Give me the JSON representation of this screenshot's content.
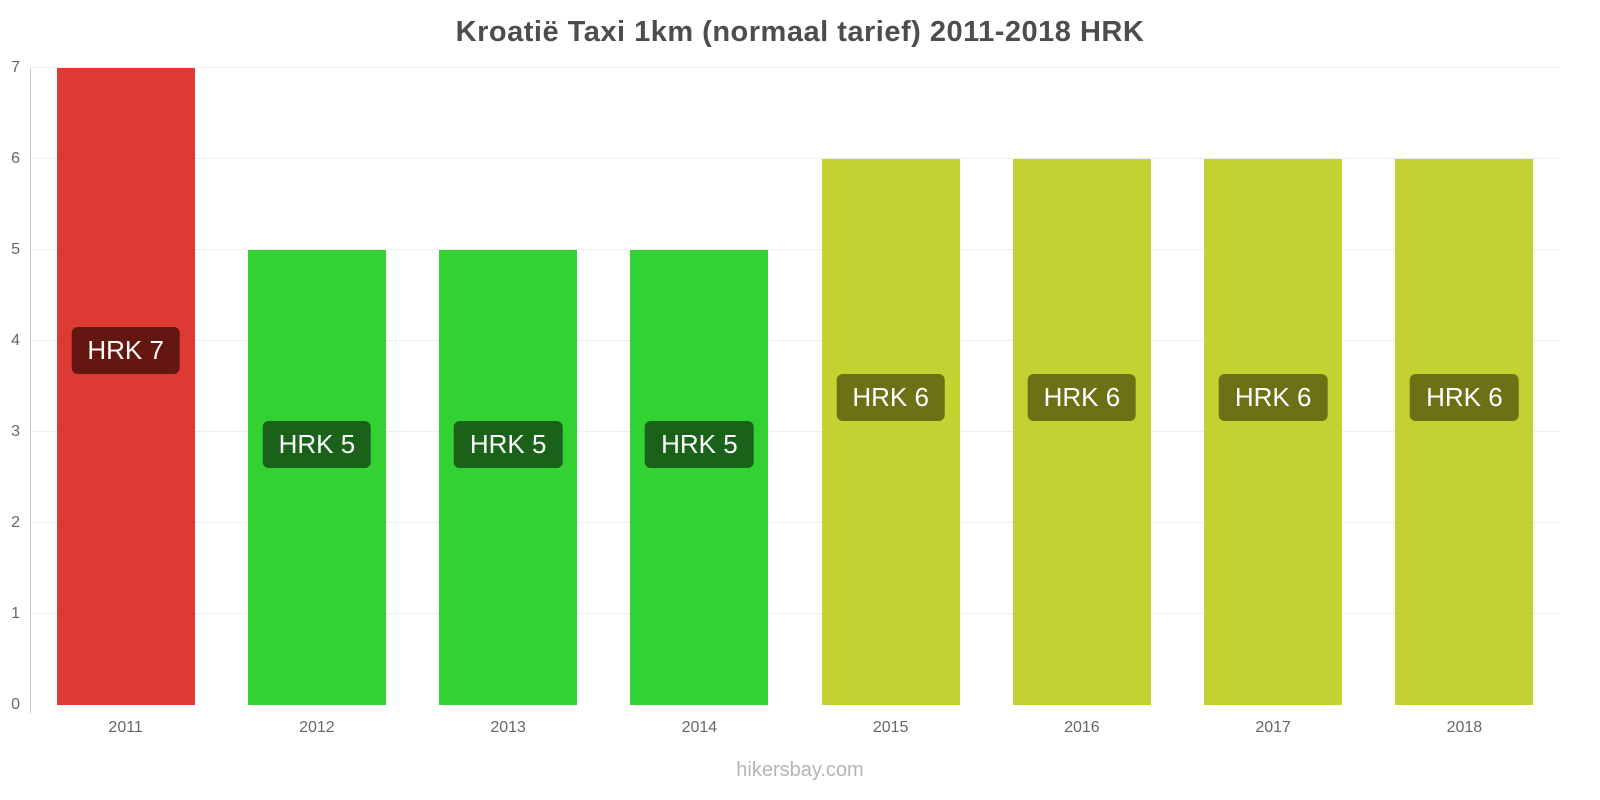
{
  "title": "Kroatië Taxi 1km (normaal tarief) 2011-2018 HRK",
  "footer": "hikersbay.com",
  "chart_data": {
    "type": "bar",
    "categories": [
      "2011",
      "2012",
      "2013",
      "2014",
      "2015",
      "2016",
      "2017",
      "2018"
    ],
    "values": [
      7,
      5,
      5,
      5,
      6,
      6,
      6,
      6
    ],
    "bar_labels": [
      "HRK 7",
      "HRK 5",
      "HRK 5",
      "HRK 5",
      "HRK 6",
      "HRK 6",
      "HRK 6",
      "HRK 6"
    ],
    "bar_colors": [
      "#dc3a32",
      "#32d232",
      "#32d232",
      "#32d232",
      "#c3d230",
      "#c3d230",
      "#c3d230",
      "#c3d230"
    ],
    "badge_colors": [
      "#641710",
      "#1a611a",
      "#1a611a",
      "#1a611a",
      "#6c7116",
      "#6c7116",
      "#6c7116",
      "#6c7116"
    ],
    "title": "Kroatië Taxi 1km (normaal tarief) 2011-2018 HRK",
    "xlabel": "",
    "ylabel": "",
    "ylim": [
      0,
      7
    ],
    "yticks": [
      0,
      1,
      2,
      3,
      4,
      5,
      6,
      7
    ],
    "grid": true,
    "legend_position": "none"
  }
}
